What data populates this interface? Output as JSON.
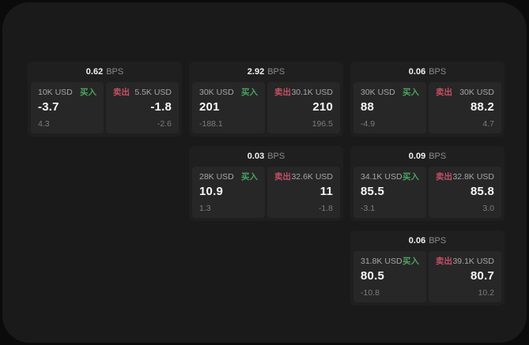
{
  "labels": {
    "bps_unit": "BPS",
    "buy": "买入",
    "sell": "卖出"
  },
  "colors": {
    "buy": "#4ba35f",
    "sell": "#c35064",
    "panel_bg": "#1a1a1a",
    "card_bg": "#1f1f1f",
    "tile_bg": "#272727"
  },
  "cards": [
    {
      "bps": "0.62",
      "grid": {
        "row": 1,
        "col": 1
      },
      "buy": {
        "amount": "10K USD",
        "price": "-3.7",
        "change": "4.3"
      },
      "sell": {
        "amount": "5.5K USD",
        "price": "-1.8",
        "change": "-2.6"
      }
    },
    {
      "bps": "2.92",
      "grid": {
        "row": 1,
        "col": 2
      },
      "buy": {
        "amount": "30K USD",
        "price": "201",
        "change": "-188.1"
      },
      "sell": {
        "amount": "30.1K USD",
        "price": "210",
        "change": "196.5"
      }
    },
    {
      "bps": "0.06",
      "grid": {
        "row": 1,
        "col": 3
      },
      "buy": {
        "amount": "30K USD",
        "price": "88",
        "change": "-4.9"
      },
      "sell": {
        "amount": "30K USD",
        "price": "88.2",
        "change": "4.7"
      }
    },
    {
      "bps": "0.03",
      "grid": {
        "row": 2,
        "col": 2
      },
      "buy": {
        "amount": "28K USD",
        "price": "10.9",
        "change": "1.3"
      },
      "sell": {
        "amount": "32.6K USD",
        "price": "11",
        "change": "-1.8"
      }
    },
    {
      "bps": "0.09",
      "grid": {
        "row": 2,
        "col": 3
      },
      "buy": {
        "amount": "34.1K USD",
        "price": "85.5",
        "change": "-3.1"
      },
      "sell": {
        "amount": "32.8K USD",
        "price": "85.8",
        "change": "3.0"
      }
    },
    {
      "bps": "0.06",
      "grid": {
        "row": 3,
        "col": 3
      },
      "buy": {
        "amount": "31.8K USD",
        "price": "80.5",
        "change": "-10.8"
      },
      "sell": {
        "amount": "39.1K USD",
        "price": "80.7",
        "change": "10.2"
      }
    }
  ]
}
